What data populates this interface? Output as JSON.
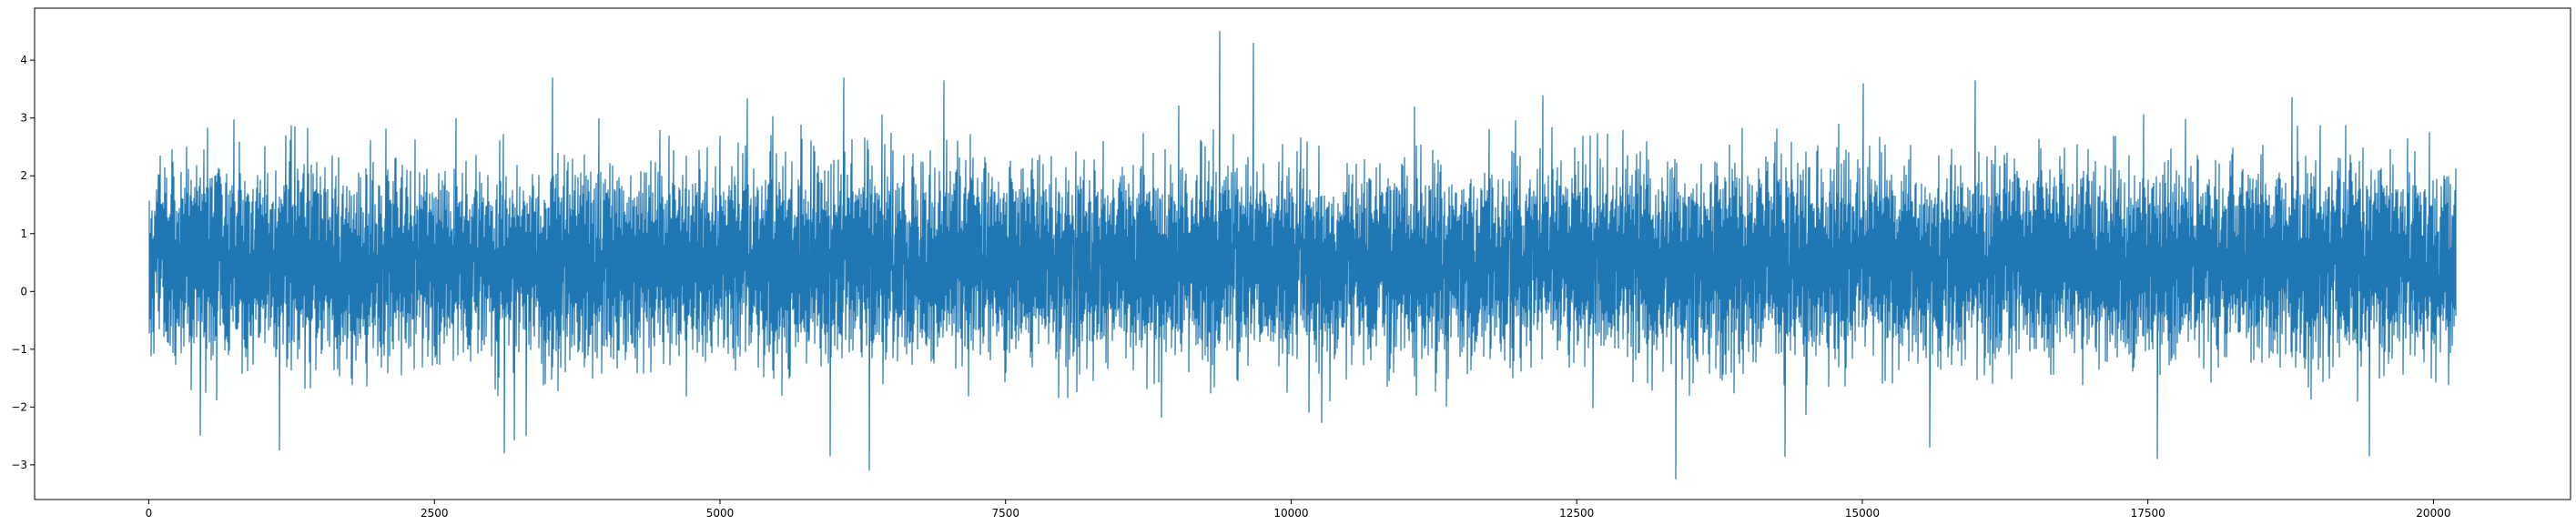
{
  "chart_data": {
    "type": "line",
    "title": "",
    "xlabel": "",
    "ylabel": "",
    "xlim": [
      -1000,
      21200
    ],
    "ylim": [
      -3.6,
      4.9
    ],
    "grid": false,
    "legend": "none",
    "series_color": "#1f77b4",
    "x_ticks": [
      0,
      2500,
      5000,
      7500,
      10000,
      12500,
      15000,
      17500,
      20000
    ],
    "y_ticks": [
      -3,
      -2,
      -1,
      0,
      1,
      2,
      3,
      4
    ],
    "x_tick_labels": [
      "0",
      "2500",
      "5000",
      "7500",
      "10000",
      "12500",
      "15000",
      "17500",
      "20000"
    ],
    "y_tick_labels": [
      "−3",
      "−2",
      "−1",
      "0",
      "1",
      "2",
      "3",
      "4"
    ],
    "series": [
      {
        "n_points": 20200,
        "x_start": 0,
        "x_end": 20200,
        "mean": 0.5,
        "std": 0.75,
        "min": -3.25,
        "max": 4.5,
        "extremes": [
          {
            "x": 9370,
            "y": 4.5
          },
          {
            "x": 9670,
            "y": 4.3
          },
          {
            "x": 3530,
            "y": 3.7
          },
          {
            "x": 6080,
            "y": 3.7
          },
          {
            "x": 6960,
            "y": 3.65
          },
          {
            "x": 15990,
            "y": 3.65
          },
          {
            "x": 15010,
            "y": 3.6
          },
          {
            "x": 13370,
            "y": -3.25
          },
          {
            "x": 6310,
            "y": -3.1
          },
          {
            "x": 3110,
            "y": -2.8
          },
          {
            "x": 1140,
            "y": -2.75
          },
          {
            "x": 17580,
            "y": -2.9
          },
          {
            "x": 19440,
            "y": -2.85
          },
          {
            "x": 5960,
            "y": -2.85
          }
        ]
      }
    ]
  }
}
